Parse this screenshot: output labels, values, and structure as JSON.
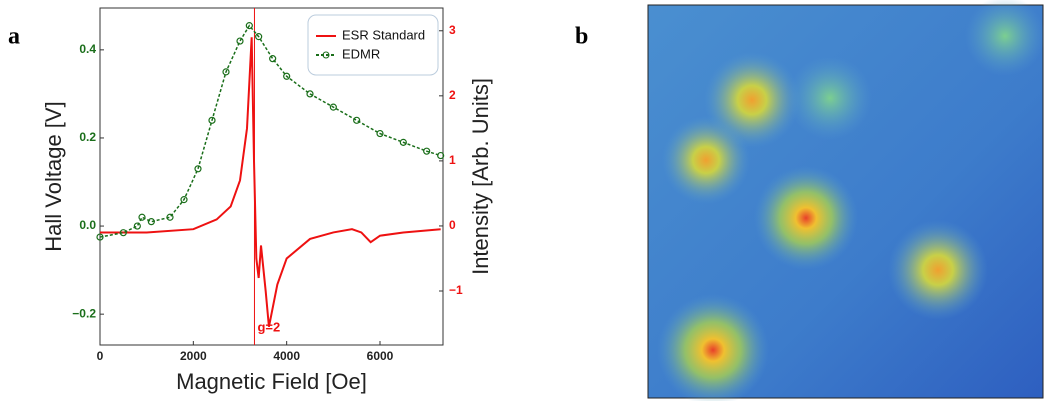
{
  "panel_labels": [
    "a",
    "b"
  ],
  "chart_data": {
    "type": "line",
    "xlabel": "Magnetic Field [Oe]",
    "ylabel": "Hall Voltage [V]",
    "y2label": "Intensity [Arb. Units]",
    "xlim": [
      0,
      7350
    ],
    "xticks": [
      0,
      2000,
      4000,
      6000
    ],
    "ylim": [
      -0.27,
      0.495
    ],
    "yticks": [
      {
        "value": -0.2,
        "label": "−0.2"
      },
      {
        "value": 0,
        "label": "0.0"
      },
      {
        "value": 0.2,
        "label": "0.2"
      },
      {
        "value": 0.4,
        "label": "0.4"
      }
    ],
    "ytick_color": "#1a6e1a",
    "y2lim": [
      -1.83,
      3.35
    ],
    "y2ticks": [
      {
        "value": -1,
        "label": "−1"
      },
      0,
      1,
      2,
      3
    ],
    "y2tick_color": "#ee1111",
    "legend": "upper right",
    "annotation": {
      "text": "g=2",
      "x": 3310,
      "color": "#ee1111"
    },
    "series": [
      {
        "name": "ESR Standard",
        "color": "#ee1111",
        "axis": "y2",
        "marker": false,
        "x": [
          0,
          1000,
          2000,
          2500,
          2800,
          3000,
          3150,
          3250,
          3300,
          3350,
          3400,
          3450,
          3550,
          3620,
          3800,
          4000,
          4500,
          5000,
          5400,
          5600,
          5800,
          6000,
          6500,
          7300
        ],
        "values": [
          -0.1,
          -0.1,
          -0.05,
          0.1,
          0.3,
          0.7,
          1.5,
          2.9,
          1.0,
          -0.5,
          -0.8,
          -0.3,
          -1.0,
          -1.55,
          -0.9,
          -0.5,
          -0.2,
          -0.1,
          -0.05,
          -0.1,
          -0.25,
          -0.15,
          -0.1,
          -0.05
        ]
      },
      {
        "name": "EDMR",
        "color": "#1a6e1a",
        "axis": "y",
        "marker": true,
        "x": [
          0,
          500,
          800,
          900,
          1100,
          1500,
          1800,
          2100,
          2400,
          2700,
          3000,
          3200,
          3400,
          3700,
          4000,
          4500,
          5000,
          5500,
          6000,
          6500,
          7000,
          7300
        ],
        "values": [
          -0.025,
          -0.015,
          0.0,
          0.02,
          0.01,
          0.02,
          0.06,
          0.13,
          0.24,
          0.35,
          0.42,
          0.455,
          0.43,
          0.38,
          0.34,
          0.3,
          0.27,
          0.24,
          0.21,
          0.19,
          0.17,
          0.16
        ]
      }
    ]
  }
}
